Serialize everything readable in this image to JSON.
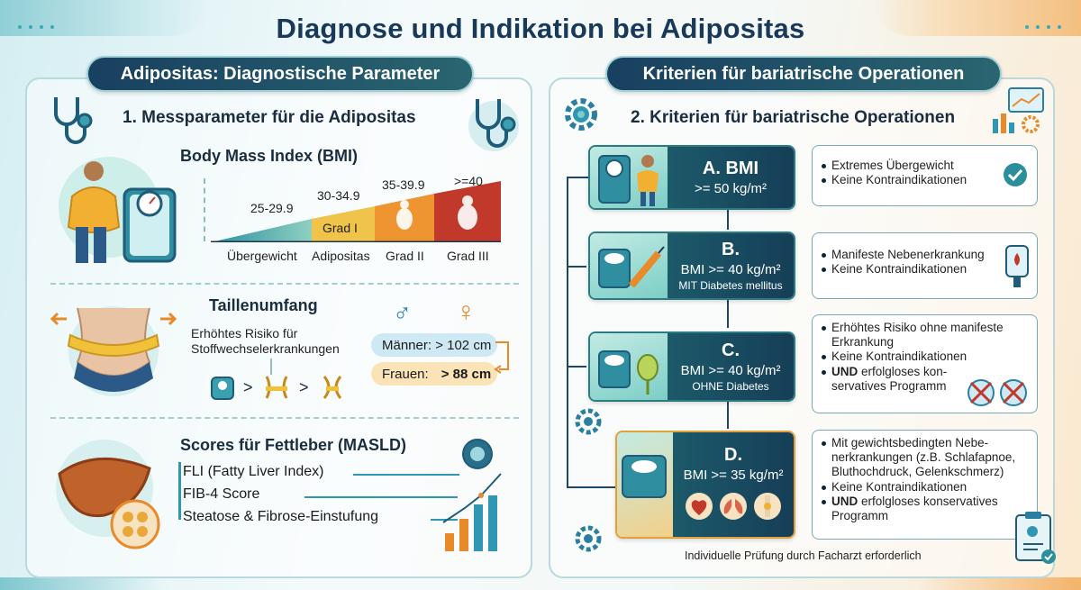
{
  "main_title": "Diagnose und Indikation bei Adipositas",
  "left": {
    "pill": "Adipositas: Diagnostische Parameter",
    "heading": "1. Messparameter für die Adipositas",
    "bmi": {
      "title": "Body Mass Index (BMI)",
      "ranges": [
        "25-29.9",
        "30-34.9",
        "35-39.9",
        ">=40"
      ],
      "labels": [
        "Übergewicht",
        "Adipositas",
        "Grad II",
        "Grad III"
      ],
      "grad1": "Grad I"
    },
    "waist": {
      "title": "Taillenumfang",
      "risk_line1": "Erhöhtes Risiko für",
      "risk_line2": "Stoffwechselerkrankungen",
      "male_symbol": "♂",
      "female_symbol": "♀",
      "men": "Männer: > 102 cm",
      "women_label": "Frauen:",
      "women_value": "> 88 cm",
      "gt1": ">",
      "gt2": ">"
    },
    "masld": {
      "title": "Scores für Fettleber (MASLD)",
      "items": [
        "FLI (Fatty Liver Index)",
        "FIB-4 Score",
        "Steatose & Fibrose-Einstufung"
      ]
    }
  },
  "right": {
    "pill": "Kriterien für bariatrische Operationen",
    "heading": "2. Kriterien für bariatrische Operationen",
    "criteria": [
      {
        "title": "A. BMI",
        "line2": ">= 50 kg/m²",
        "line3": ""
      },
      {
        "title": "B.",
        "line2": "BMI >= 40 kg/m²",
        "line3": "MIT Diabetes mellitus"
      },
      {
        "title": "C.",
        "line2": "BMI >= 40 kg/m²",
        "line3": "OHNE Diabetes"
      },
      {
        "title": "D.",
        "line2": "BMI >= 35 kg/m²",
        "line3": ""
      }
    ],
    "info": [
      [
        "Extremes Übergewicht",
        "Keine Kontraindikationen"
      ],
      [
        "Manifeste Nebenerkrankung",
        "Keine Kontraindikationen"
      ],
      [
        "Erhöhtes Risiko ohne manifeste Erkrankung",
        "Keine Kontraindikationen"
      ],
      [
        "Mit gewichtsbedingten Nebe-nerkrankungen (z.B. Schlafapnoe, Bluthochdruck, Gelenkschmerz)",
        "Keine Kontraindikationen"
      ]
    ],
    "und_c": {
      "bold": "UND",
      "rest": " erfolgloses kon-servatives Programm"
    },
    "und_d": {
      "bold": "UND",
      "rest": " erfolgloses konservatives Programm"
    },
    "footnote": "Individuelle Prüfung durch Facharzt erforderlich"
  },
  "colors": {
    "navy": "#183a58",
    "teal": "#2a8f9a",
    "orange": "#e88a2a",
    "red": "#c0392b",
    "yellow": "#f0c34a"
  }
}
